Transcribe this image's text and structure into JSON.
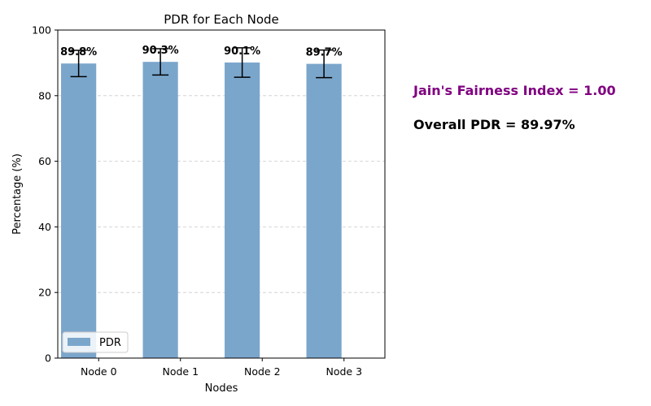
{
  "chart_data": {
    "type": "bar",
    "title": "PDR for Each Node",
    "xlabel": "Nodes",
    "ylabel": "Percentage (%)",
    "categories": [
      "Node 0",
      "Node 1",
      "Node 2",
      "Node 3"
    ],
    "series": [
      {
        "name": "PDR",
        "values": [
          89.8,
          90.3,
          90.1,
          89.7
        ],
        "errors": [
          4.0,
          4.0,
          4.5,
          4.2
        ]
      }
    ],
    "value_labels": [
      "89.8%",
      "90.3%",
      "90.1%",
      "89.7%"
    ],
    "ylim": [
      0,
      100
    ],
    "yticks": [
      0,
      20,
      40,
      60,
      80,
      100
    ],
    "grid": "y-dashed",
    "legend_position": "lower-left",
    "bar_color": "#7ba6cc",
    "annotations": {
      "fairness": "Jain's Fairness Index = 1.00",
      "overall": "Overall PDR = 89.97%"
    },
    "annotation_colors": {
      "fairness": "#800080",
      "overall": "#000000"
    }
  }
}
